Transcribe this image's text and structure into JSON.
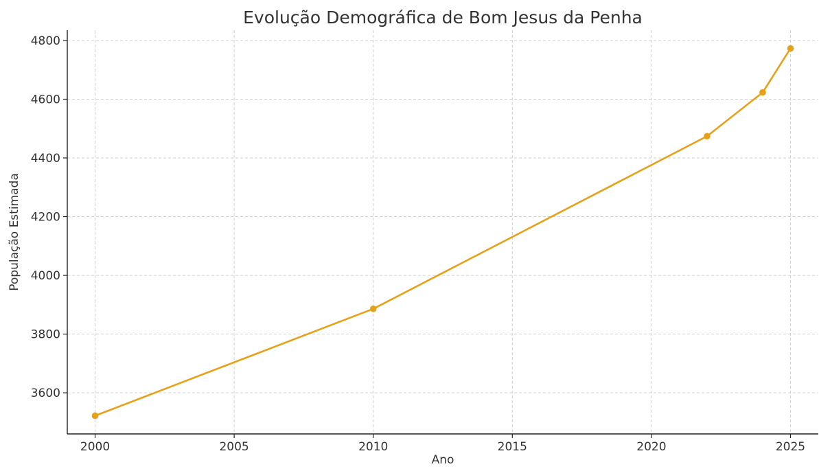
{
  "chart_data": {
    "type": "line",
    "title": "Evolução Demográfica de Bom Jesus da Penha",
    "xlabel": "Ano",
    "ylabel": "População Estimada",
    "x": [
      2000,
      2010,
      2022,
      2024,
      2025
    ],
    "series": [
      {
        "values": [
          3522,
          3886,
          4474,
          4623,
          4773
        ],
        "color": "#E6A11A"
      }
    ],
    "xlim": [
      1999,
      2026
    ],
    "ylim": [
      3460,
      4835
    ],
    "xticks": [
      2000,
      2005,
      2010,
      2015,
      2020,
      2025
    ],
    "yticks": [
      3600,
      3800,
      4000,
      4200,
      4400,
      4600,
      4800
    ],
    "grid": true,
    "marker": "circle"
  }
}
